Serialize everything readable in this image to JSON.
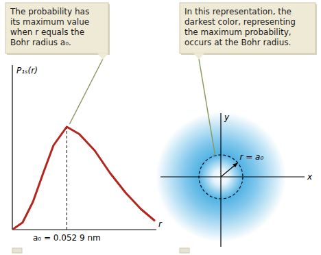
{
  "chart_data": {
    "type": "line",
    "y_label": "P₁ₛ(r)",
    "x_label": "r",
    "x": [
      0,
      0.01,
      0.02,
      0.03,
      0.04,
      0.0529,
      0.065,
      0.08,
      0.095,
      0.11,
      0.125,
      0.138
    ],
    "values": [
      0,
      0.07,
      0.27,
      0.55,
      0.82,
      1.0,
      0.93,
      0.77,
      0.55,
      0.36,
      0.2,
      0.09
    ],
    "xlim": [
      0,
      0.14
    ],
    "ylim": [
      0,
      1.6
    ],
    "xticks": [
      {
        "value": 0.0529,
        "label": "a₀ = 0.052 9 nm"
      }
    ],
    "tick_labels": "x",
    "color": "#b3261e",
    "line_style": "solid"
  },
  "callouts": [
    {
      "lines": [
        "The probability has",
        "its maximum value",
        "when r equals the",
        "Bohr radius a₀."
      ]
    },
    {
      "lines": [
        "In this representation, the",
        "darkest color, representing",
        "the maximum probability,",
        "occurs at the Bohr radius."
      ]
    }
  ],
  "density": {
    "x_label": "x",
    "y_label": "y",
    "radius_label": "r = a₀"
  }
}
